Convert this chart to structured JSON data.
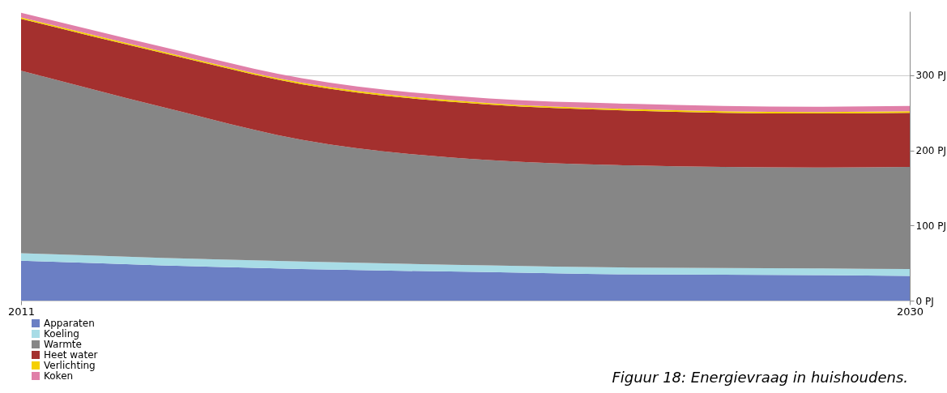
{
  "chart_data": {
    "type": "area",
    "stacked": true,
    "x": [
      2011,
      2014,
      2017,
      2021,
      2024,
      2028,
      2030
    ],
    "series": [
      {
        "name": "Apparaten",
        "color": "#6b7fc4",
        "values": [
          53,
          47,
          42,
          38,
          35,
          34,
          33
        ]
      },
      {
        "name": "Koeling",
        "color": "#a8dce6",
        "values": [
          10,
          10,
          10,
          9,
          9,
          9,
          9
        ]
      },
      {
        "name": "Warmte",
        "color": "#868686",
        "values": [
          243,
          201,
          162,
          140,
          136,
          134,
          136
        ]
      },
      {
        "name": "Heet water",
        "color": "#a4302e",
        "values": [
          69,
          72,
          74,
          74,
          73,
          72,
          72
        ]
      },
      {
        "name": "Verlichting",
        "color": "#f5d000",
        "values": [
          2,
          2,
          2,
          2,
          2,
          2,
          2
        ]
      },
      {
        "name": "Koken",
        "color": "#e07fa8",
        "values": [
          6,
          6,
          6,
          6,
          7,
          7,
          7
        ]
      }
    ],
    "xlim": [
      2011,
      2030
    ],
    "xticks": [
      2011,
      2030
    ],
    "ylim": [
      0,
      385
    ],
    "yticks": [
      {
        "value": 0,
        "label": "0 PJ"
      },
      {
        "value": 100,
        "label": "100 PJ"
      },
      {
        "value": 200,
        "label": "200 PJ"
      },
      {
        "value": 300,
        "label": "300 PJ"
      }
    ],
    "grid": "y",
    "legend": "bottom left",
    "annotations": [
      "Figuur 18: Energievraag in huishoudens."
    ]
  }
}
